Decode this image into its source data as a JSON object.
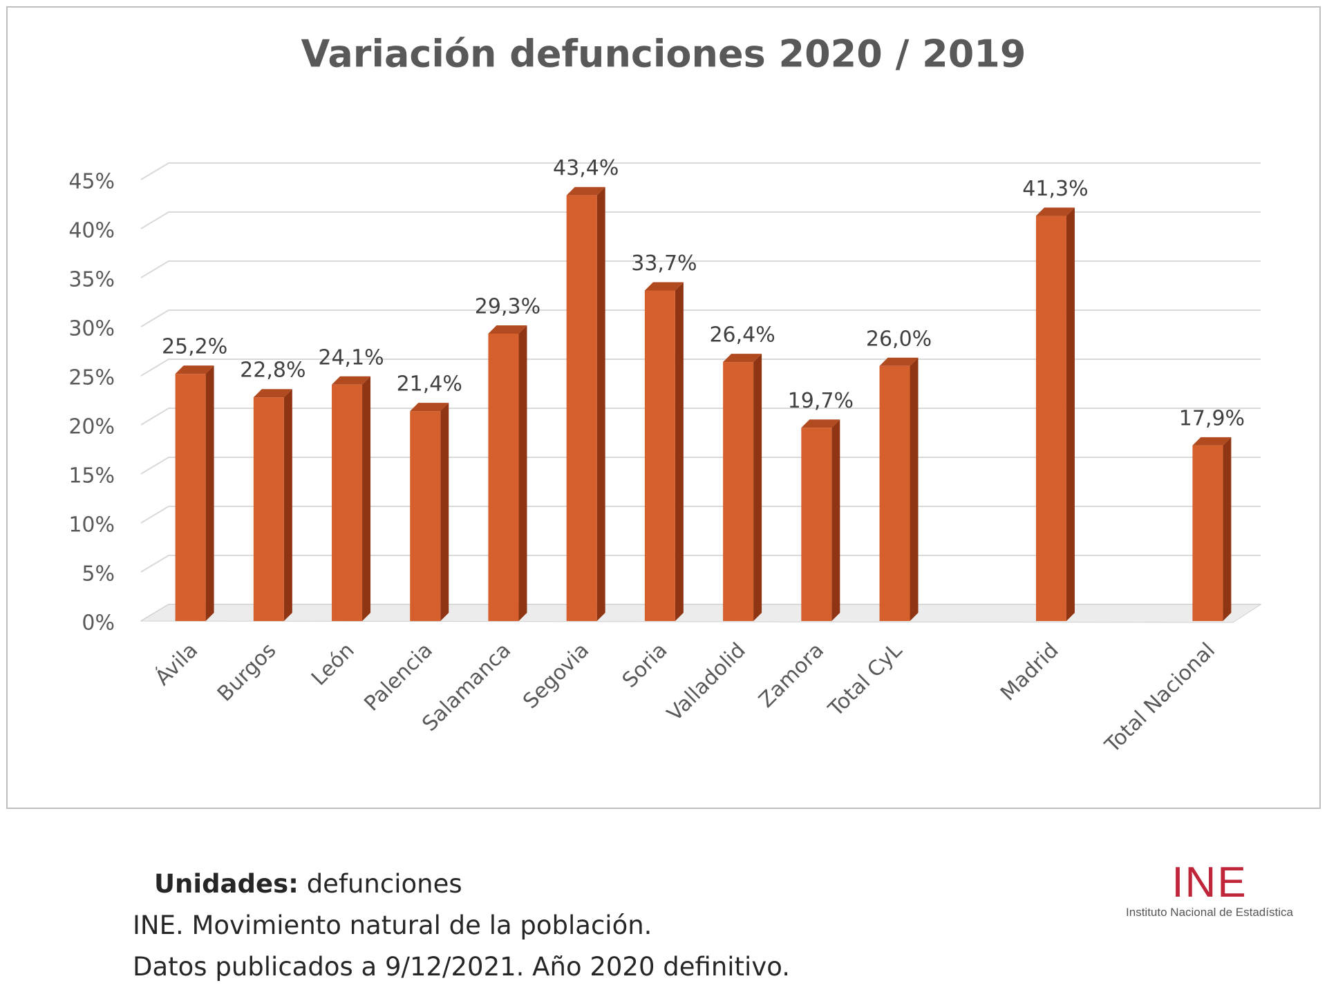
{
  "chart_data": {
    "type": "bar3d",
    "title": "Variación defunciones 2020 / 2019",
    "categories": [
      "Ávila",
      "Burgos",
      "León",
      "Palencia",
      "Salamanca",
      "Segovia",
      "Soria",
      "Valladolid",
      "Zamora",
      "Total CyL",
      null,
      "Madrid",
      null,
      "Total Nacional"
    ],
    "values": [
      25.2,
      22.8,
      24.1,
      21.4,
      29.3,
      43.4,
      33.7,
      26.4,
      19.7,
      26.0,
      null,
      41.3,
      null,
      17.9
    ],
    "value_labels": [
      "25,2%",
      "22,8%",
      "24,1%",
      "21,4%",
      "29,3%",
      "43,4%",
      "33,7%",
      "26,4%",
      "19,7%",
      "26,0%",
      null,
      "41,3%",
      null,
      "17,9%"
    ],
    "color": "#d55f2d",
    "ylim": [
      0,
      45
    ],
    "yticks": [
      {
        "value": 0,
        "label": "0%"
      },
      {
        "value": 5,
        "label": "5%"
      },
      {
        "value": 10,
        "label": "10%"
      },
      {
        "value": 15,
        "label": "15%"
      },
      {
        "value": 20,
        "label": "20%"
      },
      {
        "value": 25,
        "label": "25%"
      },
      {
        "value": 30,
        "label": "30%"
      },
      {
        "value": 35,
        "label": "35%"
      },
      {
        "value": 40,
        "label": "40%"
      },
      {
        "value": 45,
        "label": "45%"
      }
    ],
    "grid": true
  },
  "footer": {
    "units_label": "Unidades:",
    "units_value": "defunciones",
    "source": "INE. Movimiento natural de la población.",
    "note": "Datos publicados a 9/12/2021. Año 2020 definitivo."
  },
  "logo": {
    "mark": "INE",
    "name": "Instituto Nacional de Estadística"
  }
}
